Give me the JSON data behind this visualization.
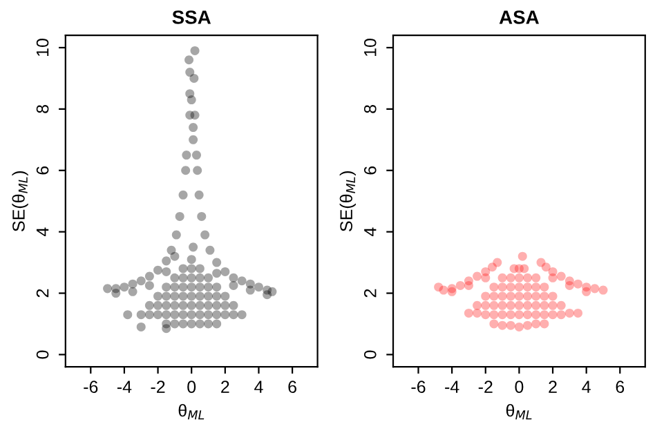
{
  "chart_data": [
    {
      "type": "scatter",
      "title": "SSA",
      "xlabel": "θ$_{ML}$",
      "ylabel": "SE(θ$_{ML}$)",
      "xlim": [
        -7.5,
        7.5
      ],
      "ylim": [
        -0.4,
        10.4
      ],
      "xticks": [
        -6,
        -4,
        -2,
        0,
        2,
        4,
        6
      ],
      "yticks": [
        0,
        2,
        4,
        6,
        8,
        10
      ],
      "grid": false,
      "legend": false,
      "marker": "circle",
      "series": [
        {
          "color": "#000000",
          "x": [
            -5,
            -4.5,
            -4,
            -3.5,
            -3,
            -2.5,
            -2,
            -1.5,
            -1.2,
            -0.9,
            -0.7,
            -0.5,
            -0.35,
            -0.3,
            -4.5,
            -3.5,
            -2.5,
            -1.5,
            -1,
            0.3,
            0.35,
            0.45,
            0.6,
            0.8,
            1.1,
            1.5,
            2,
            2.5,
            3,
            3.5,
            4,
            4.5,
            4.8,
            1.5,
            2.5,
            3.5,
            4.5,
            0.1,
            0.1,
            -0.1,
            0.2,
            0,
            -0.1,
            0.15,
            -0.1,
            -0.15,
            0.2,
            -1.5,
            -1,
            -0.5,
            0,
            0.5,
            1,
            1.5,
            -3,
            -2.5,
            -2,
            -1.5,
            -1,
            -0.5,
            0,
            0.5,
            1,
            1.5,
            2,
            2.5,
            3,
            -2.5,
            -2,
            -1.5,
            -1,
            -0.5,
            0,
            0.5,
            1,
            1.5,
            2,
            2.5,
            -2,
            -1.5,
            -1,
            -0.5,
            0,
            0.5,
            1,
            1.5,
            2,
            -1.5,
            -1,
            -0.5,
            0,
            0.5,
            1,
            1.5,
            -1,
            -0.5,
            0,
            0.5,
            1,
            -0.5,
            0,
            0.5,
            0,
            0.1,
            -3,
            -3.8,
            -1.5
          ],
          "values": [
            2.15,
            2.15,
            2.2,
            2.3,
            2.4,
            2.55,
            2.75,
            3.05,
            3.4,
            3.9,
            4.5,
            5.2,
            6.0,
            6.5,
            2.0,
            2.05,
            2.25,
            2.7,
            3.2,
            6.5,
            6.0,
            5.2,
            4.5,
            3.9,
            3.4,
            3.0,
            2.7,
            2.5,
            2.4,
            2.3,
            2.2,
            2.1,
            2.05,
            2.65,
            2.25,
            2.1,
            1.95,
            7.0,
            7.4,
            7.8,
            7.8,
            8.3,
            8.5,
            9.0,
            9.2,
            9.6,
            9.9,
            1.0,
            1.0,
            1.0,
            1.0,
            1.0,
            1.0,
            1.0,
            1.3,
            1.3,
            1.3,
            1.3,
            1.3,
            1.3,
            1.3,
            1.3,
            1.3,
            1.3,
            1.3,
            1.3,
            1.3,
            1.6,
            1.6,
            1.6,
            1.6,
            1.6,
            1.6,
            1.6,
            1.6,
            1.6,
            1.6,
            1.6,
            1.9,
            1.9,
            1.9,
            1.9,
            1.9,
            1.9,
            1.9,
            1.9,
            1.9,
            2.2,
            2.2,
            2.2,
            2.2,
            2.2,
            2.2,
            2.2,
            2.5,
            2.5,
            2.5,
            2.5,
            2.5,
            2.8,
            2.8,
            2.8,
            3.1,
            3.5,
            0.9,
            1.3,
            0.85
          ]
        }
      ]
    },
    {
      "type": "scatter",
      "title": "ASA",
      "xlabel": "θ$_{ML}$",
      "ylabel": "SE(θ$_{ML}$)",
      "xlim": [
        -7.5,
        7.5
      ],
      "ylim": [
        -0.4,
        10.4
      ],
      "xticks": [
        -6,
        -4,
        -2,
        0,
        2,
        4,
        6
      ],
      "yticks": [
        0,
        2,
        4,
        6,
        8,
        10
      ],
      "grid": false,
      "legend": false,
      "marker": "circle",
      "series": [
        {
          "color": "#ff1a1a",
          "x": [
            -4.8,
            -4.5,
            -4,
            -3.5,
            -3,
            -2.5,
            -2,
            -1.6,
            -1.3,
            -4,
            -3,
            -2,
            1.3,
            1.6,
            2,
            2.5,
            3,
            3.5,
            4,
            4.5,
            5,
            2,
            3,
            4,
            -1.5,
            -1,
            -0.5,
            0,
            0.5,
            1,
            1.5,
            -3,
            -2.5,
            -2,
            -1.5,
            -1,
            -0.5,
            0,
            0.5,
            1,
            1.5,
            2,
            2.5,
            3,
            3.5,
            -2.5,
            -2,
            -1.5,
            -1,
            -0.5,
            0,
            0.5,
            1,
            1.5,
            2,
            2.5,
            -2,
            -1.5,
            -1,
            -0.5,
            0,
            0.5,
            1,
            1.5,
            2,
            -1.5,
            -1,
            -0.5,
            0,
            0.5,
            1,
            1.5,
            -1,
            -0.5,
            0,
            0.5,
            1,
            -0.3,
            0,
            0.3,
            0.2
          ],
          "values": [
            2.2,
            2.1,
            2.15,
            2.25,
            2.4,
            2.55,
            2.7,
            2.85,
            3.0,
            2.05,
            2.25,
            2.5,
            3.0,
            2.85,
            2.7,
            2.55,
            2.4,
            2.3,
            2.2,
            2.15,
            2.1,
            2.5,
            2.25,
            2.05,
            1.0,
            0.95,
            0.95,
            0.9,
            0.95,
            1.0,
            1.0,
            1.35,
            1.35,
            1.3,
            1.3,
            1.3,
            1.3,
            1.3,
            1.3,
            1.3,
            1.3,
            1.3,
            1.3,
            1.35,
            1.35,
            1.6,
            1.6,
            1.6,
            1.6,
            1.6,
            1.6,
            1.6,
            1.6,
            1.6,
            1.6,
            1.6,
            1.9,
            1.9,
            1.9,
            1.9,
            1.9,
            1.9,
            1.9,
            1.9,
            1.9,
            2.2,
            2.2,
            2.2,
            2.2,
            2.2,
            2.2,
            2.2,
            2.5,
            2.5,
            2.5,
            2.5,
            2.5,
            2.8,
            2.8,
            2.8,
            3.2
          ]
        }
      ]
    }
  ]
}
